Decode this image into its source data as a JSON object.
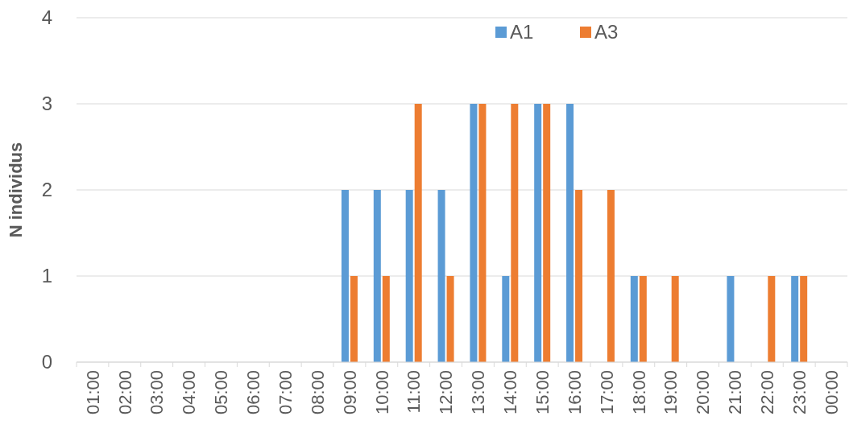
{
  "chart_data": {
    "type": "bar",
    "ylabel": "N individus",
    "categories": [
      "01:00",
      "02:00",
      "03:00",
      "04:00",
      "05:00",
      "06:00",
      "07:00",
      "08:00",
      "09:00",
      "10:00",
      "11:00",
      "12:00",
      "13:00",
      "14:00",
      "15:00",
      "16:00",
      "17:00",
      "18:00",
      "19:00",
      "20:00",
      "21:00",
      "22:00",
      "23:00",
      "00:00"
    ],
    "series": [
      {
        "name": "A1",
        "color": "#5b9bd5",
        "values": [
          0,
          0,
          0,
          0,
          0,
          0,
          0,
          0,
          2,
          2,
          2,
          2,
          3,
          1,
          3,
          3,
          0,
          1,
          0,
          0,
          1,
          0,
          1,
          0
        ]
      },
      {
        "name": "A3",
        "color": "#ed7d31",
        "values": [
          0,
          0,
          0,
          0,
          0,
          0,
          0,
          0,
          1,
          1,
          3,
          1,
          3,
          3,
          3,
          2,
          2,
          1,
          1,
          0,
          0,
          1,
          1,
          0
        ]
      }
    ],
    "ylim": [
      0,
      4
    ],
    "yticks": [
      0,
      1,
      2,
      3,
      4
    ],
    "grid": "y",
    "legend": "top"
  }
}
